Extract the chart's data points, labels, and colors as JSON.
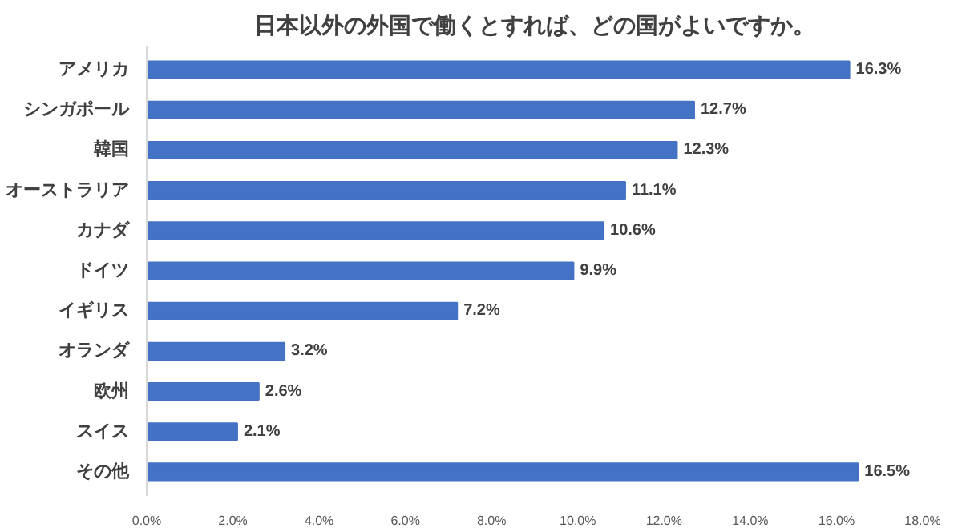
{
  "chart_data": {
    "type": "bar",
    "orientation": "horizontal",
    "title": "日本以外の外国で働くとすれば、どの国がよいですか。",
    "categories": [
      "アメリカ",
      "シンガポール",
      "韓国",
      "オーストラリア",
      "カナダ",
      "ドイツ",
      "イギリス",
      "オランダ",
      "欧州",
      "スイス",
      "その他"
    ],
    "values": [
      16.3,
      12.7,
      12.3,
      11.1,
      10.6,
      9.9,
      7.2,
      3.2,
      2.6,
      2.1,
      16.5
    ],
    "value_labels": [
      "16.3%",
      "12.7%",
      "12.3%",
      "11.1%",
      "10.6%",
      "9.9%",
      "7.2%",
      "3.2%",
      "2.6%",
      "2.1%",
      "16.5%"
    ],
    "color": "#4472c4",
    "xlim": [
      0,
      18
    ],
    "xticks": [
      {
        "value": 0,
        "label": "0.0%"
      },
      {
        "value": 2,
        "label": "2.0%"
      },
      {
        "value": 4,
        "label": "4.0%"
      },
      {
        "value": 6,
        "label": "6.0%"
      },
      {
        "value": 8,
        "label": "8.0%"
      },
      {
        "value": 10,
        "label": "10.0%"
      },
      {
        "value": 12,
        "label": "12.0%"
      },
      {
        "value": 14,
        "label": "14.0%"
      },
      {
        "value": 16,
        "label": "16.0%"
      },
      {
        "value": 18,
        "label": "18.0%"
      }
    ],
    "grid": false
  }
}
